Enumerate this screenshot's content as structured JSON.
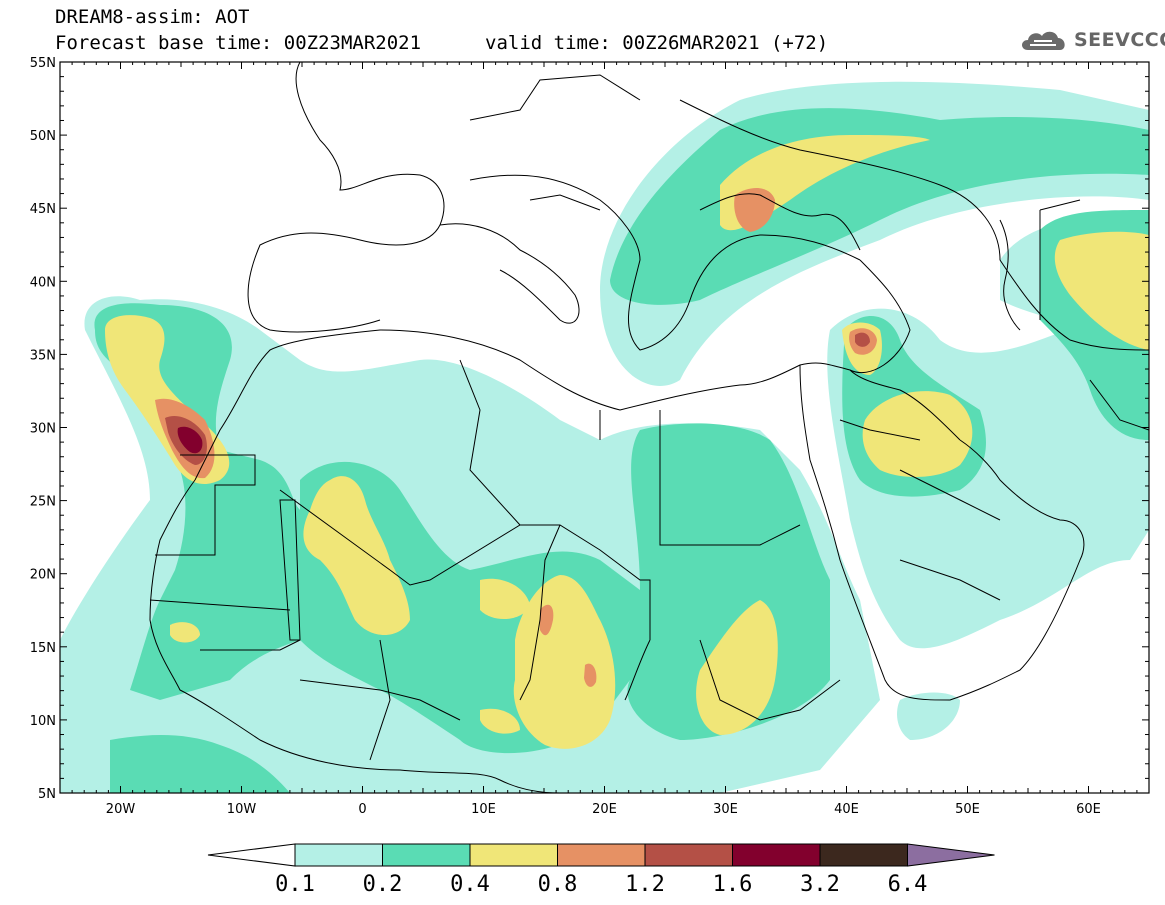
{
  "header": {
    "title_line1": "DREAM8-assim: AOT",
    "forecast_base": "Forecast base time: 00Z23MAR2021",
    "valid_time": "valid time: 00Z26MAR2021 (+72)",
    "logo_text": "SEEVCCC",
    "logo_icon": "cloud-icon"
  },
  "map": {
    "lon_range": [
      -25,
      65
    ],
    "lat_range": [
      5,
      55
    ],
    "lat_ticks": [
      "55N",
      "50N",
      "45N",
      "40N",
      "35N",
      "30N",
      "25N",
      "20N",
      "15N",
      "10N",
      "5N"
    ],
    "lon_ticks": [
      "20W",
      "10W",
      "0",
      "10E",
      "20E",
      "30E",
      "40E",
      "50E",
      "60E"
    ]
  },
  "colorbar": {
    "labels": [
      "0.1",
      "0.2",
      "0.4",
      "0.8",
      "1.2",
      "1.6",
      "3.2",
      "6.4"
    ],
    "colors": [
      "#ffffff",
      "#b4f0e6",
      "#5adcb4",
      "#f0e678",
      "#e69164",
      "#b45046",
      "#82002d",
      "#3c281e",
      "#8c6ea0"
    ]
  }
}
